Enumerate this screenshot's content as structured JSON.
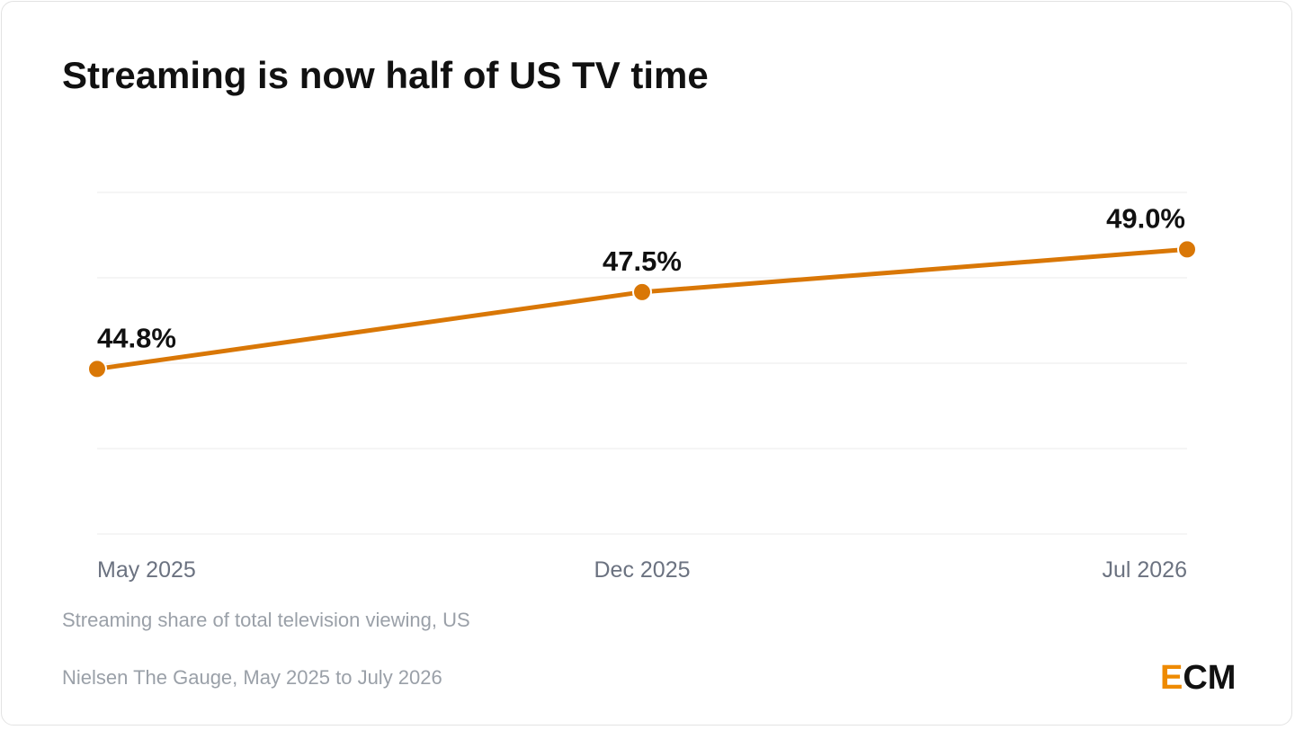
{
  "title": "Streaming is now half of US TV time",
  "subtitle": "Streaming share of total television viewing, US",
  "source": "Nielsen The Gauge, May 2025 to July 2026",
  "logo": {
    "first": "E",
    "rest": "CM"
  },
  "colors": {
    "line": "#d97706",
    "grid": "#ebebeb",
    "axis_text": "#6b7280",
    "label_text": "#111111",
    "logo_accent": "#ee8a00"
  },
  "chart_data": {
    "type": "line",
    "categories": [
      "May 2025",
      "Dec 2025",
      "Jul 2026"
    ],
    "values": [
      44.8,
      47.5,
      49.0
    ],
    "value_labels": [
      "44.8%",
      "47.5%",
      "49.0%"
    ],
    "unit": "%",
    "ylim": [
      39,
      51
    ],
    "gridlines": [
      39,
      42,
      45,
      48,
      51
    ],
    "grid": true,
    "legend": "none"
  }
}
